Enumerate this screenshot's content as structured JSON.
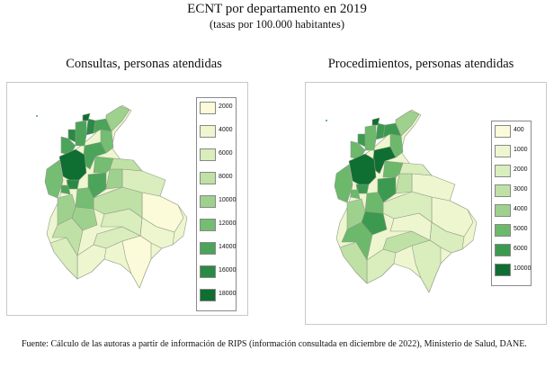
{
  "header": {
    "title": "ECNT por departamento en 2019",
    "subtitle": "(tasas por 100.000 habitantes)"
  },
  "maps": [
    {
      "label": "Consultas, personas atendidas",
      "legend": [
        {
          "label": "2000",
          "color": "#fbfbd9"
        },
        {
          "label": "4000",
          "color": "#eef6cf"
        },
        {
          "label": "6000",
          "color": "#d9edbd"
        },
        {
          "label": "8000",
          "color": "#bfe1a6"
        },
        {
          "label": "10000",
          "color": "#9fd18e"
        },
        {
          "label": "12000",
          "color": "#74bd72"
        },
        {
          "label": "14000",
          "color": "#4ba45a"
        },
        {
          "label": "16000",
          "color": "#2a8a45"
        },
        {
          "label": "18000",
          "color": "#0f6e32"
        }
      ]
    },
    {
      "label": "Procedimientos, personas atendidas",
      "legend": [
        {
          "label": "400",
          "color": "#fbfbd9"
        },
        {
          "label": "1000",
          "color": "#eef6cf"
        },
        {
          "label": "2000",
          "color": "#d9edbd"
        },
        {
          "label": "3000",
          "color": "#bfe1a6"
        },
        {
          "label": "4000",
          "color": "#9fd18e"
        },
        {
          "label": "5000",
          "color": "#6cb96c"
        },
        {
          "label": "6000",
          "color": "#3c9a50"
        },
        {
          "label": "10000",
          "color": "#0f6e32"
        }
      ]
    }
  ],
  "source": "Fuente: Cálculo de las autoras a partir de información de RIPS (información consultada en diciembre de 2022), Ministerio de Salud, DANE."
}
